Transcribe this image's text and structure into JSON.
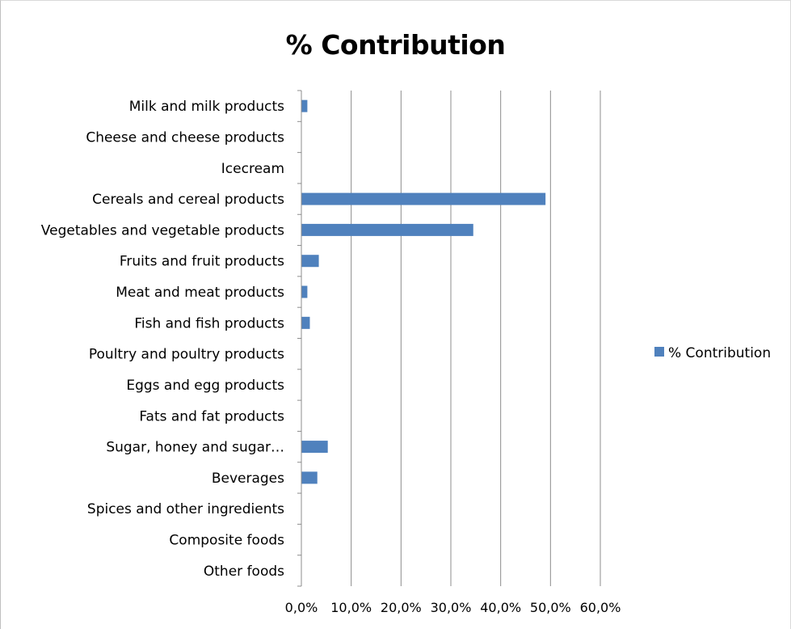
{
  "chart_data": {
    "type": "bar",
    "orientation": "horizontal",
    "title": "% Contribution",
    "xlabel": "",
    "ylabel": "",
    "categories": [
      "Milk and milk products",
      "Cheese and cheese products",
      "Icecream",
      "Cereals and cereal products",
      "Vegetables and vegetable products",
      "Fruits and fruit products",
      "Meat and meat products",
      "Fish and fish products",
      "Poultry and poultry products",
      "Eggs and egg products",
      "Fats and fat products",
      "Sugar, honey and sugar…",
      "Beverages",
      "Spices and other ingredients",
      "Composite foods",
      "Other foods"
    ],
    "series": [
      {
        "name": "% Contribution",
        "color": "#4f81bd",
        "values": [
          1.2,
          0,
          0,
          49.0,
          34.5,
          3.5,
          1.2,
          1.7,
          0,
          0,
          0,
          5.3,
          3.2,
          0,
          0,
          0
        ]
      }
    ],
    "xlim": [
      0,
      60
    ],
    "xticks": [
      0,
      10,
      20,
      30,
      40,
      50,
      60
    ],
    "xtick_labels": [
      "0,0%",
      "10,0%",
      "20,0%",
      "30,0%",
      "40,0%",
      "50,0%",
      "60,0%"
    ],
    "grid": true,
    "legend_position": "right"
  }
}
